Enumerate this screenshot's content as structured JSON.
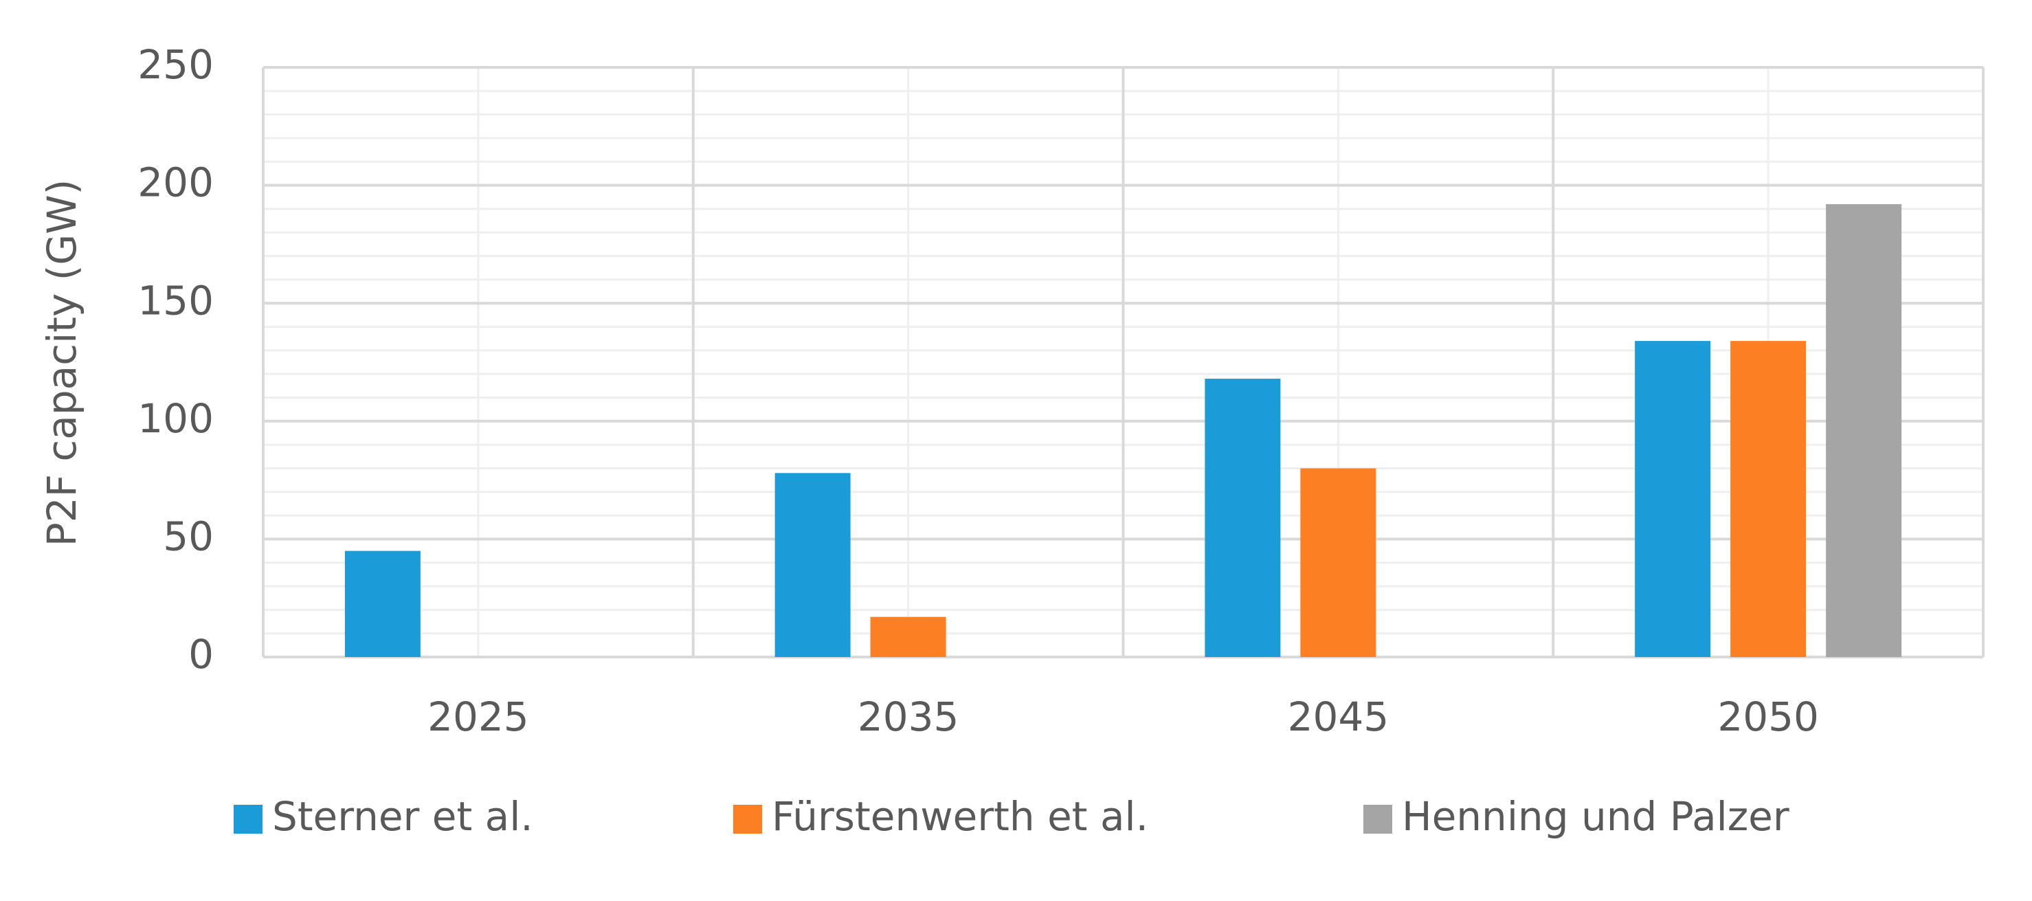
{
  "chart_data": {
    "type": "bar",
    "y_label": "P2F capacity (GW)",
    "categories": [
      "2025",
      "2035",
      "2045",
      "2050"
    ],
    "series": [
      {
        "name": "Sterner et al.",
        "color": "#1b9cd8",
        "values": [
          45,
          78,
          118,
          134
        ]
      },
      {
        "name": "Fürstenwerth et al.",
        "color": "#fd7f23",
        "values": [
          null,
          17,
          80,
          134
        ]
      },
      {
        "name": "Henning und Palzer",
        "color": "#a5a5a5",
        "values": [
          null,
          null,
          null,
          192
        ]
      }
    ],
    "ylim": [
      0,
      250
    ],
    "yticks": [
      0,
      50,
      100,
      150,
      200,
      250
    ],
    "yminorticks": [
      10,
      20,
      30,
      40,
      60,
      70,
      80,
      90,
      110,
      120,
      130,
      140,
      160,
      170,
      180,
      190,
      210,
      220,
      230,
      240
    ],
    "grid": true,
    "legend": "bottom"
  }
}
